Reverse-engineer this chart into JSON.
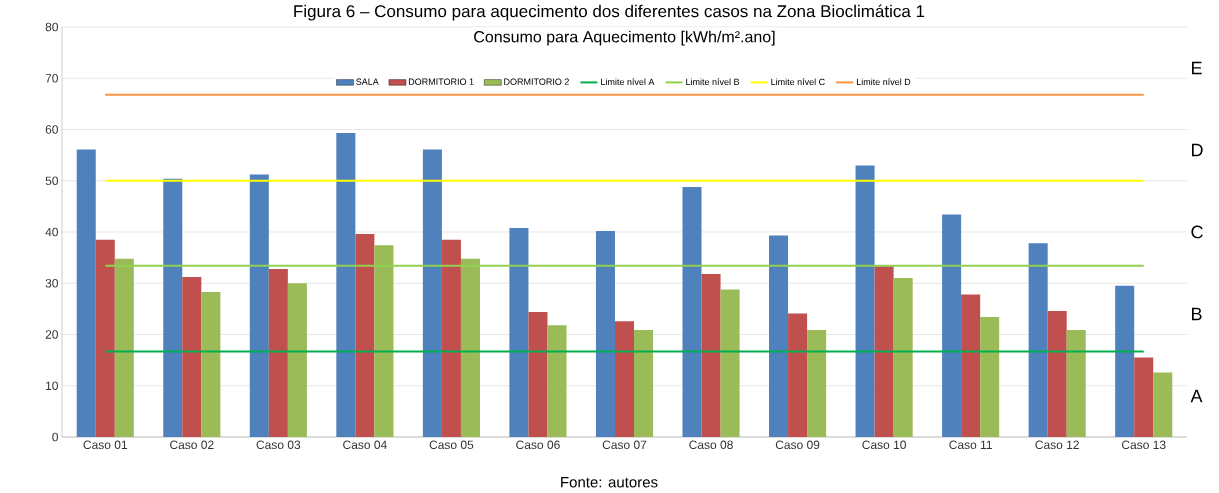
{
  "chart_data": {
    "type": "bar",
    "title": "Consumo para Aquecimento [kWh/m².ano]",
    "categories": [
      "Caso 01",
      "Caso 02",
      "Caso 03",
      "Caso 04",
      "Caso 05",
      "Caso 06",
      "Caso 07",
      "Caso 08",
      "Caso 09",
      "Caso 10",
      "Caso 11",
      "Caso 12",
      "Caso 13"
    ],
    "series": [
      {
        "name": "SALA",
        "color": "#4f81bd",
        "values": [
          56.1,
          50.4,
          51.2,
          59.3,
          56.1,
          40.8,
          40.2,
          48.8,
          39.3,
          53.0,
          43.4,
          37.8,
          29.5
        ]
      },
      {
        "name": "DORMITORIO 1",
        "color": "#c0504d",
        "values": [
          38.5,
          31.2,
          32.8,
          39.6,
          38.5,
          24.4,
          22.6,
          31.8,
          24.1,
          33.3,
          27.8,
          24.6,
          15.5
        ]
      },
      {
        "name": "DORMITORIO 2",
        "color": "#9bbb59",
        "values": [
          34.8,
          28.3,
          30.0,
          37.4,
          34.8,
          21.8,
          20.9,
          28.8,
          20.9,
          31.0,
          23.4,
          20.9,
          12.6
        ]
      },
      {
        "name": "Limite nível A",
        "type": "line",
        "color": "#00b050",
        "values": [
          16.7,
          16.7,
          16.7,
          16.7,
          16.7,
          16.7,
          16.7,
          16.7,
          16.7,
          16.7,
          16.7,
          16.7,
          16.7
        ]
      },
      {
        "name": "Limite nível B",
        "type": "line",
        "color": "#92d050",
        "values": [
          33.4,
          33.4,
          33.4,
          33.4,
          33.4,
          33.4,
          33.4,
          33.4,
          33.4,
          33.4,
          33.4,
          33.4,
          33.4
        ]
      },
      {
        "name": "Limite nível C",
        "type": "line",
        "color": "#ffff00",
        "values": [
          50,
          50,
          50,
          50,
          50,
          50,
          50,
          50,
          50,
          50,
          50,
          50,
          50
        ]
      },
      {
        "name": "Limite nível D",
        "type": "line",
        "color": "#f79646",
        "values": [
          66.8,
          66.8,
          66.8,
          66.8,
          66.8,
          66.8,
          66.8,
          66.8,
          66.8,
          66.8,
          66.8,
          66.8,
          66.8
        ]
      }
    ],
    "ylim": [
      0,
      80
    ],
    "yticks": [
      0,
      10,
      20,
      30,
      40,
      50,
      60,
      70,
      80
    ],
    "grid": "y",
    "legend": "top",
    "annotations": [
      "Figura 6 – Consumo para aquecimento dos diferentes casos na Zona Bioclimática 1",
      "A",
      "B",
      "C",
      "D",
      "E",
      "Fonte: autores"
    ]
  }
}
